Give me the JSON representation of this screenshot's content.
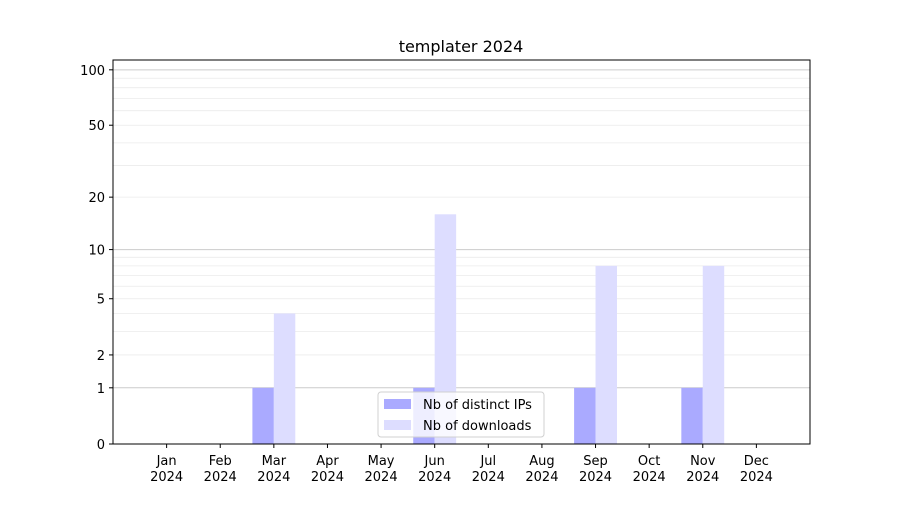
{
  "chart_data": {
    "type": "bar",
    "title": "templater 2024",
    "xlabel": "",
    "ylabel": "",
    "yscale": "log10(1+y)",
    "ylim": [
      0,
      113
    ],
    "yticks": [
      0,
      1,
      2,
      5,
      10,
      20,
      50,
      100
    ],
    "ytick_labels": [
      "0",
      "1",
      "2",
      "5",
      "10",
      "20",
      "50",
      "100"
    ],
    "grid": true,
    "legend_position": "lower-center",
    "categories": [
      "Jan\n2024",
      "Feb\n2024",
      "Mar\n2024",
      "Apr\n2024",
      "May\n2024",
      "Jun\n2024",
      "Jul\n2024",
      "Aug\n2024",
      "Sep\n2024",
      "Oct\n2024",
      "Nov\n2024",
      "Dec\n2024"
    ],
    "series": [
      {
        "name": "Nb of distinct IPs",
        "color": "#aaaaff",
        "values": [
          0,
          0,
          1,
          0,
          0,
          1,
          0,
          0,
          1,
          0,
          1,
          0
        ]
      },
      {
        "name": "Nb of downloads",
        "color": "#ddddff",
        "values": [
          0,
          0,
          4,
          0,
          0,
          16,
          0,
          0,
          8,
          0,
          8,
          0
        ]
      }
    ]
  }
}
